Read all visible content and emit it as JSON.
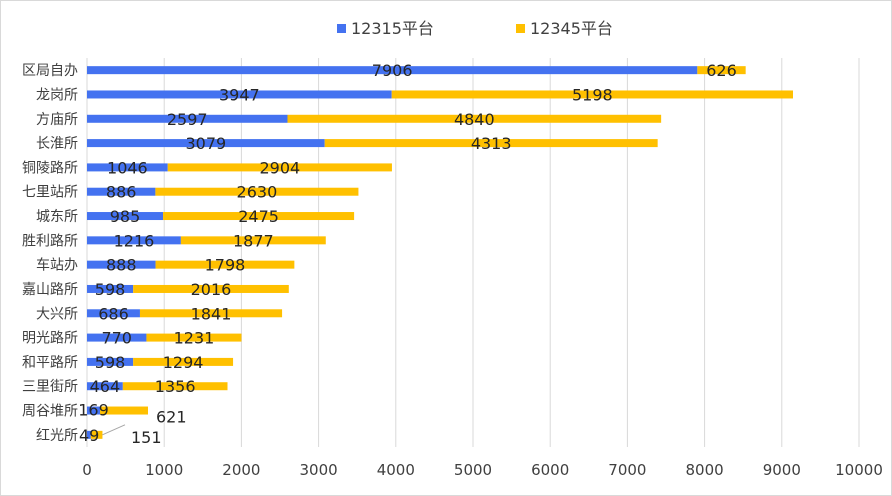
{
  "chart_data": {
    "type": "bar",
    "orientation": "horizontal",
    "stacked": true,
    "title": "",
    "xlabel": "",
    "ylabel": "",
    "xlim": [
      0,
      10000
    ],
    "x_ticks": [
      "0",
      "1000",
      "2000",
      "3000",
      "4000",
      "5000",
      "6000",
      "7000",
      "8000",
      "9000",
      "10000"
    ],
    "grid": "vertical",
    "legend_position": "top",
    "categories": [
      "区局自办",
      "龙岗所",
      "方庙所",
      "长淮所",
      "铜陵路所",
      "七里站所",
      "城东所",
      "胜利路所",
      "车站办",
      "嘉山路所",
      "大兴所",
      "明光路所",
      "和平路所",
      "三里街所",
      "周谷堆所",
      "红光所"
    ],
    "series": [
      {
        "name": "12315平台",
        "color": "#4472f0",
        "values": [
          7906,
          3947,
          2597,
          3079,
          1046,
          886,
          985,
          1216,
          888,
          598,
          686,
          770,
          598,
          464,
          169,
          49
        ]
      },
      {
        "name": "12345平台",
        "color": "#ffc000",
        "values": [
          626,
          5198,
          4840,
          4313,
          2904,
          2630,
          2475,
          1877,
          1798,
          2016,
          1841,
          1231,
          1294,
          1356,
          621,
          151
        ]
      }
    ]
  }
}
